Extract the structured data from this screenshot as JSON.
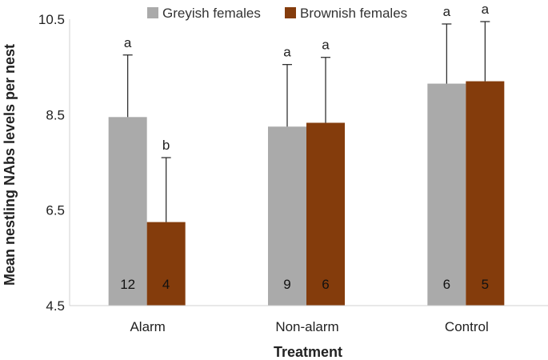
{
  "chart_data": {
    "type": "bar",
    "xlabel": "Treatment",
    "ylabel": "Mean nestling NAbs levels per nest",
    "ylim": [
      4.5,
      10.5
    ],
    "yticks": [
      "4.5",
      "6.5",
      "8.5",
      "10.5"
    ],
    "ytick_values": [
      4.5,
      6.5,
      8.5,
      10.5
    ],
    "categories": [
      "Alarm",
      "Non-alarm",
      "Control"
    ],
    "legend_position": "top",
    "grid": false,
    "series": [
      {
        "name": "Greyish females",
        "color": "#aaaaaa",
        "values": [
          8.45,
          8.25,
          9.15
        ],
        "error_upper": [
          9.75,
          9.55,
          10.4
        ],
        "significance": [
          "a",
          "a",
          "a"
        ],
        "sample_sizes": [
          "12",
          "9",
          "6"
        ]
      },
      {
        "name": "Brownish females",
        "color": "#843c0c",
        "values": [
          6.25,
          8.33,
          9.2
        ],
        "error_upper": [
          7.6,
          9.7,
          10.45
        ],
        "significance": [
          "b",
          "a",
          "a"
        ],
        "sample_sizes": [
          "4",
          "6",
          "5"
        ]
      }
    ]
  }
}
